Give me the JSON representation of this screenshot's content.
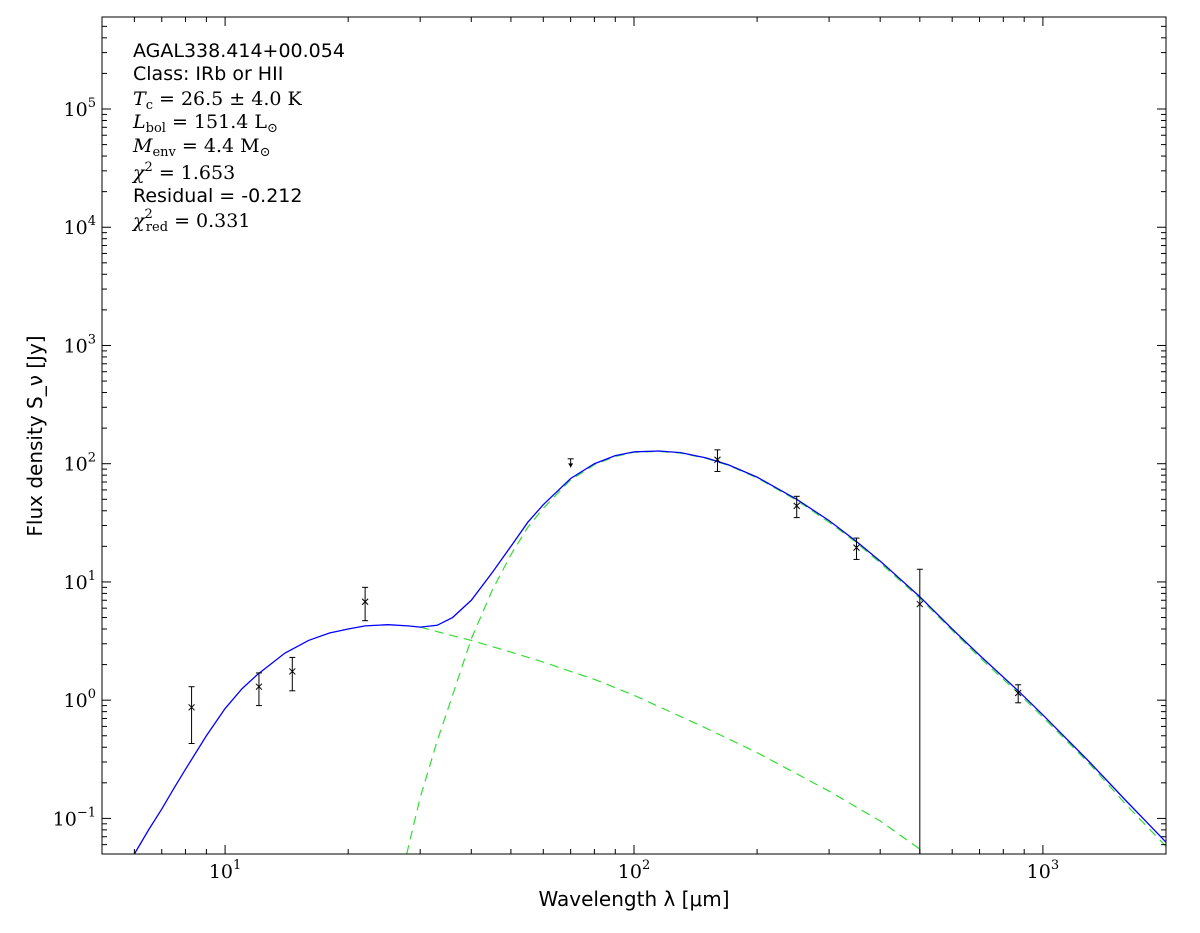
{
  "chart_data": {
    "type": "scatter",
    "title": "",
    "xlabel": "Wavelength λ [μm]",
    "ylabel": "Flux density S_ν [Jy]",
    "xscale": "log",
    "yscale": "log",
    "xlim": [
      5,
      2000
    ],
    "ylim": [
      0.05,
      600000
    ],
    "x_ticks": [
      {
        "value": 10,
        "base": "10",
        "exp": "1"
      },
      {
        "value": 100,
        "base": "10",
        "exp": "2"
      },
      {
        "value": 1000,
        "base": "10",
        "exp": "3"
      }
    ],
    "y_ticks": [
      {
        "value": 0.1,
        "base": "10",
        "exp": "−1"
      },
      {
        "value": 1,
        "base": "10",
        "exp": "0"
      },
      {
        "value": 10,
        "base": "10",
        "exp": "1"
      },
      {
        "value": 100,
        "base": "10",
        "exp": "2"
      },
      {
        "value": 1000,
        "base": "10",
        "exp": "3"
      },
      {
        "value": 10000,
        "base": "10",
        "exp": "4"
      },
      {
        "value": 100000,
        "base": "10",
        "exp": "5"
      }
    ],
    "grid": false,
    "annotations": [
      "AGAL338.414+00.054",
      "Class: IRb or HII",
      "T_c = 26.5 ± 4.0 K",
      "L_bol = 151.4 L_⊙",
      "M_env = 4.4 M_⊙",
      "χ² = 1.653",
      "Residual = -0.212",
      "χ²_red = 0.331"
    ],
    "observations": [
      {
        "x": 8.28,
        "y": 0.87,
        "ylow": 0.43,
        "yhigh": 1.3
      },
      {
        "x": 12.1,
        "y": 1.3,
        "ylow": 0.9,
        "yhigh": 1.7
      },
      {
        "x": 14.6,
        "y": 1.75,
        "ylow": 1.2,
        "yhigh": 2.3
      },
      {
        "x": 22.0,
        "y": 6.8,
        "ylow": 4.7,
        "yhigh": 9.0
      },
      {
        "x": 160,
        "y": 108,
        "ylow": 86,
        "yhigh": 131
      },
      {
        "x": 250,
        "y": 44,
        "ylow": 35,
        "yhigh": 53
      },
      {
        "x": 350,
        "y": 19.5,
        "ylow": 15.5,
        "yhigh": 23.5
      },
      {
        "x": 500,
        "y": 6.5,
        "ylow": 0.05,
        "yhigh": 12.8
      },
      {
        "x": 870,
        "y": 1.15,
        "ylow": 0.95,
        "yhigh": 1.35
      }
    ],
    "upper_limits": [
      {
        "x": 70,
        "y": 110,
        "ymin": 93
      }
    ],
    "total_model": {
      "color": "#0000ff",
      "x": [
        6.0,
        6.5,
        7.0,
        7.5,
        8.0,
        9.0,
        10.0,
        11.0,
        12.0,
        14.0,
        16.0,
        18.0,
        20.0,
        22.0,
        25.0,
        28.0,
        30.0,
        33.0,
        36.0,
        40.0,
        45.0,
        50.0,
        55.0,
        60.0,
        70.0,
        80.0,
        90.0,
        100.0,
        115.0,
        130.0,
        150.0,
        170.0,
        200.0,
        250.0,
        300.0,
        350.0,
        400.0,
        500.0,
        600.0,
        700.0,
        870.0,
        1000.0,
        1300.0,
        1600.0,
        2000.0
      ],
      "y": [
        0.05,
        0.08,
        0.12,
        0.18,
        0.26,
        0.5,
        0.85,
        1.25,
        1.65,
        2.5,
        3.2,
        3.7,
        4.0,
        4.25,
        4.35,
        4.25,
        4.15,
        4.3,
        5.0,
        7.0,
        12.0,
        20.0,
        32.0,
        45.0,
        75.0,
        100.0,
        117.0,
        126.0,
        128.0,
        124.0,
        112.0,
        98.0,
        77.0,
        50.0,
        33.0,
        22.0,
        15.0,
        7.5,
        4.0,
        2.4,
        1.2,
        0.75,
        0.3,
        0.14,
        0.063
      ]
    },
    "components": [
      {
        "color": "#33dd33",
        "style": "dashed",
        "x": [
          30.0,
          35.0,
          40.0,
          50.0,
          60.0,
          70.0,
          80.0,
          100.0,
          150.0,
          200.0,
          300.0,
          400.0,
          500.0
        ],
        "y": [
          4.15,
          3.6,
          3.2,
          2.55,
          2.1,
          1.75,
          1.5,
          1.1,
          0.58,
          0.36,
          0.17,
          0.095,
          0.055
        ]
      },
      {
        "color": "#33dd33",
        "style": "dashed",
        "x": [
          27.8,
          30.0,
          33.0,
          36.0,
          40.0,
          45.0,
          50.0,
          55.0,
          60.0,
          70.0,
          80.0,
          90.0,
          100.0,
          115.0,
          130.0,
          150.0,
          170.0,
          200.0,
          250.0,
          300.0,
          350.0,
          400.0,
          500.0,
          600.0,
          700.0,
          870.0,
          1000.0,
          1300.0,
          1600.0,
          2000.0
        ],
        "y": [
          0.05,
          0.15,
          0.45,
          1.1,
          3.3,
          8.5,
          17.0,
          29.0,
          42.0,
          73.0,
          98.0,
          115.0,
          125.0,
          127.0,
          123.0,
          111.0,
          97.0,
          76.0,
          49.0,
          32.0,
          21.5,
          14.5,
          7.3,
          3.9,
          2.3,
          1.15,
          0.72,
          0.29,
          0.13,
          0.058
        ]
      }
    ]
  }
}
